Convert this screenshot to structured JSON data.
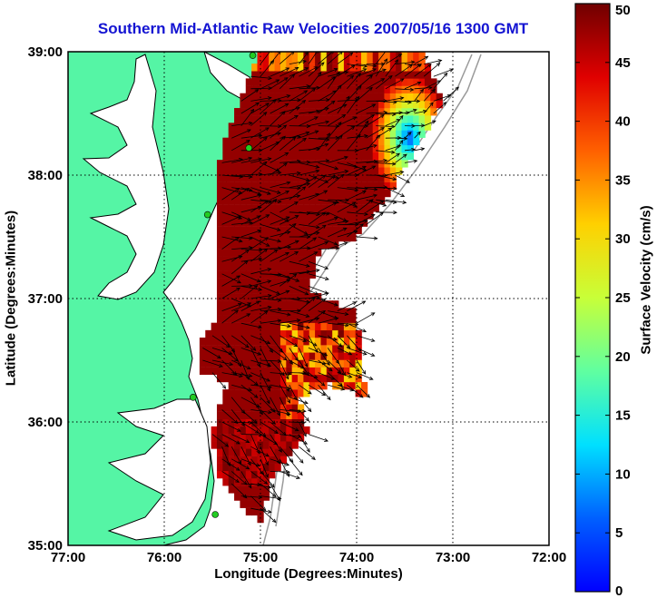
{
  "title": "Southern Mid-Atlantic Raw Velocities 2007/05/16 1300 GMT",
  "xlabel": "Longitude (Degrees:Minutes)",
  "ylabel": "Latitude (Degrees:Minutes)",
  "colorbar": {
    "label": "Surface Velocity (cm/s)",
    "ticks": [
      "0",
      "5",
      "10",
      "15",
      "20",
      "25",
      "30",
      "35",
      "40",
      "45",
      "50"
    ],
    "range": [
      0,
      50
    ],
    "colormap": "jet"
  },
  "x_ticks": [
    {
      "lon": -77,
      "label": "77:00"
    },
    {
      "lon": -76,
      "label": "76:00"
    },
    {
      "lon": -75,
      "label": "75:00"
    },
    {
      "lon": -74,
      "label": "74:00"
    },
    {
      "lon": -73,
      "label": "73:00"
    },
    {
      "lon": -72,
      "label": "72:00"
    }
  ],
  "y_ticks": [
    {
      "lat": 35,
      "label": "35:00"
    },
    {
      "lat": 36,
      "label": "36:00"
    },
    {
      "lat": 37,
      "label": "37:00"
    },
    {
      "lat": 38,
      "label": "38:00"
    },
    {
      "lat": 39,
      "label": "39:00"
    }
  ],
  "extent": {
    "lon": [
      -77,
      -72
    ],
    "lat": [
      35,
      39
    ]
  },
  "colors": {
    "land": "#55f5a5",
    "coastline": "#000000",
    "bathymetry": "#9a9a9a",
    "title": "#1414d2",
    "station": "#22cc22"
  },
  "stations": [
    {
      "lon": -75.08,
      "lat": 38.97
    },
    {
      "lon": -75.12,
      "lat": 38.22
    },
    {
      "lon": -75.55,
      "lat": 37.68
    },
    {
      "lon": -75.7,
      "lat": 36.2
    },
    {
      "lon": -75.47,
      "lat": 35.25
    }
  ]
}
